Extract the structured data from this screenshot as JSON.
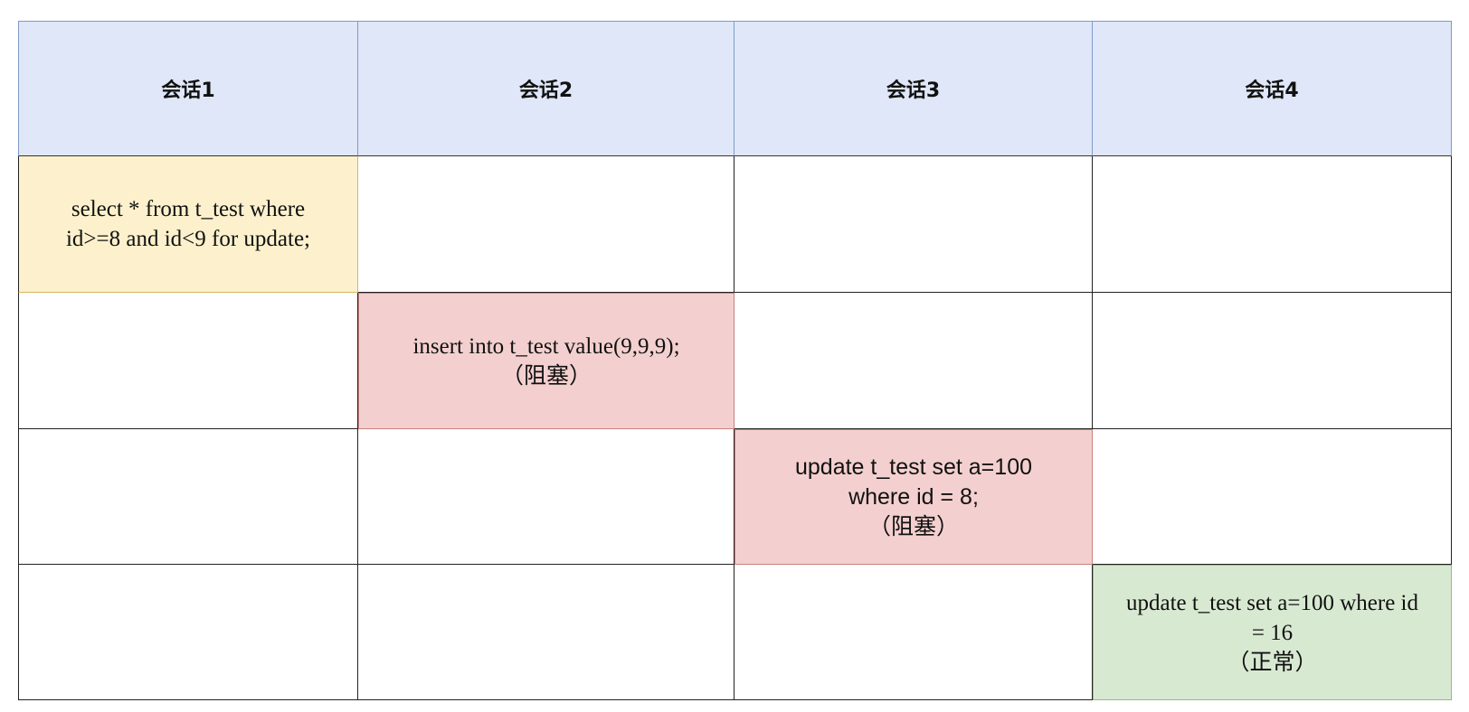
{
  "headers": [
    "会话1",
    "会话2",
    "会话3",
    "会话4"
  ],
  "steps": [
    {
      "session": 1,
      "text": "select * from t_test where\nid>=8 and id<9 for update;",
      "status": "",
      "color": "#fcf1cc"
    },
    {
      "session": 2,
      "text": "insert into t_test value(9,9,9);\n（阻塞）",
      "status": "阻塞",
      "color": "#f3d0cf"
    },
    {
      "session": 3,
      "text": "update t_test set a=100\nwhere id = 8;\n（阻塞）",
      "status": "阻塞",
      "color": "#f3d0cf"
    },
    {
      "session": 4,
      "text": "update t_test set a=100 where id\n= 16\n（正常）",
      "status": "正常",
      "color": "#d8e9d2"
    }
  ],
  "colors": {
    "header_bg": "#dfe7f8",
    "header_border": "#7e9bc8",
    "yellow": "#fcf1cc",
    "red": "#f3d0cf",
    "green": "#d8e9d2",
    "grid_line": "#222222"
  }
}
